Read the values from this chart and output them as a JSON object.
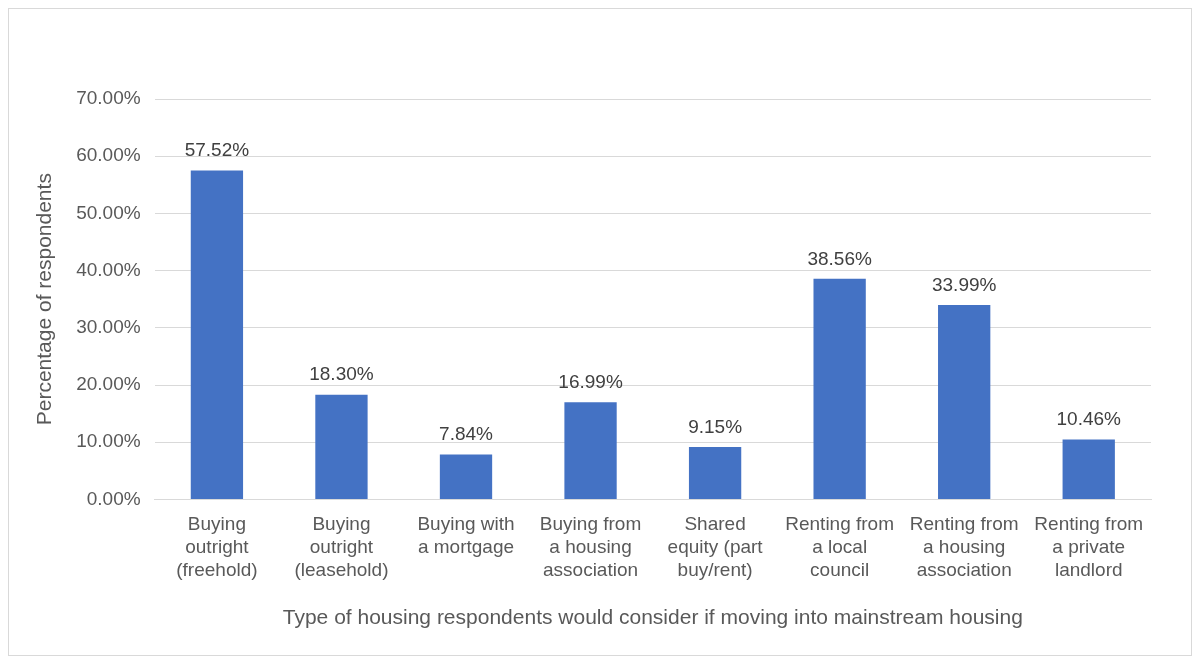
{
  "chart_data": {
    "type": "bar",
    "xlabel": "Type of housing respondents would consider if moving into mainstream housing",
    "ylabel": "Percentage of respondents",
    "categories": [
      "Buying outright (freehold)",
      "Buying outright (leasehold)",
      "Buying with a mortgage",
      "Buying from a housing association",
      "Shared equity (part buy/rent)",
      "Renting from a local council",
      "Renting from a housing association",
      "Renting from a private landlord"
    ],
    "values": [
      57.52,
      18.3,
      7.84,
      16.99,
      9.15,
      38.56,
      33.99,
      10.46
    ],
    "value_labels": [
      "57.52%",
      "18.30%",
      "7.84%",
      "16.99%",
      "9.15%",
      "38.56%",
      "33.99%",
      "10.46%"
    ],
    "color": "#4472c4",
    "ylim": [
      0,
      70
    ],
    "yticks": [
      {
        "value": 0,
        "label": "0.00%"
      },
      {
        "value": 10,
        "label": "10.00%"
      },
      {
        "value": 20,
        "label": "20.00%"
      },
      {
        "value": 30,
        "label": "30.00%"
      },
      {
        "value": 40,
        "label": "40.00%"
      },
      {
        "value": 50,
        "label": "50.00%"
      },
      {
        "value": 60,
        "label": "60.00%"
      },
      {
        "value": 70,
        "label": "70.00%"
      }
    ],
    "grid": "y",
    "legend": false
  }
}
